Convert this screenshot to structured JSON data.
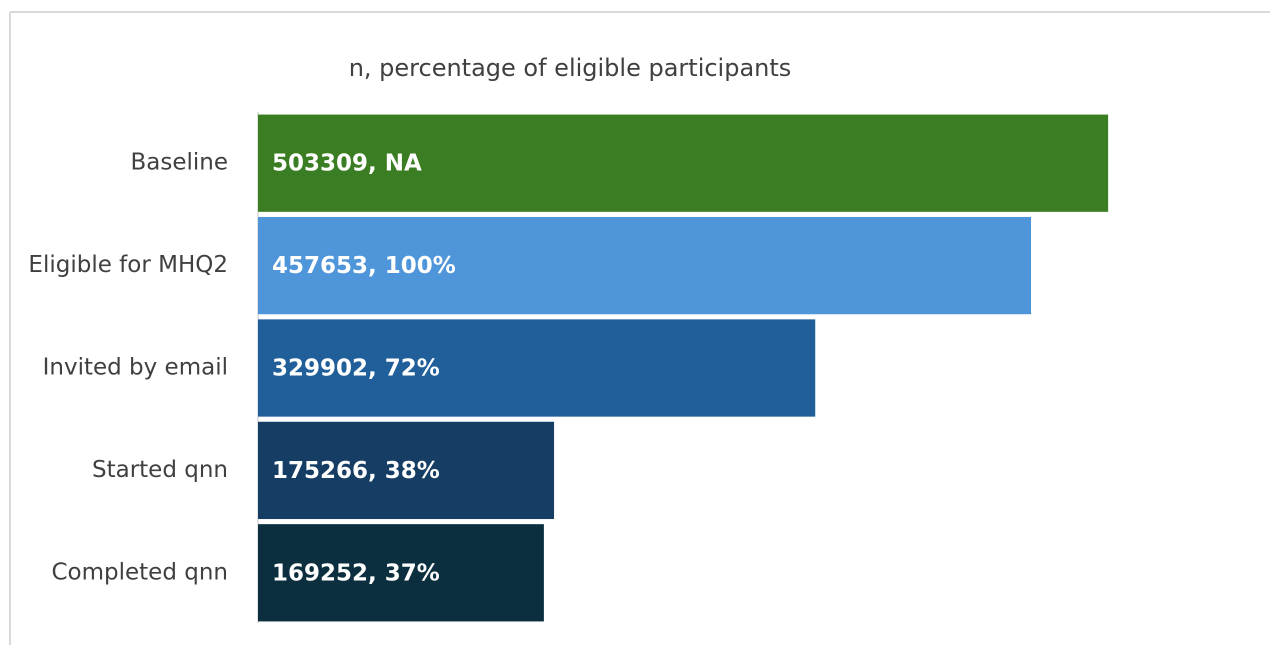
{
  "chart_data": {
    "type": "barh",
    "title": "n, percentage of eligible participants",
    "categories": [
      "Baseline",
      "Eligible for MHQ2",
      "Invited by email",
      "Started qnn",
      "Completed qnn"
    ],
    "values": [
      503309,
      457653,
      329902,
      175266,
      169252
    ],
    "value_labels": [
      "503309, NA",
      "457653, 100%",
      "329902, 72%",
      "175266, 38%",
      "169252, 37%"
    ],
    "colors": [
      "#3b7d23",
      "#4e95d9",
      "#215f9a",
      "#163e64",
      "#0c2f3f"
    ],
    "xlim": [
      0,
      550000
    ]
  }
}
